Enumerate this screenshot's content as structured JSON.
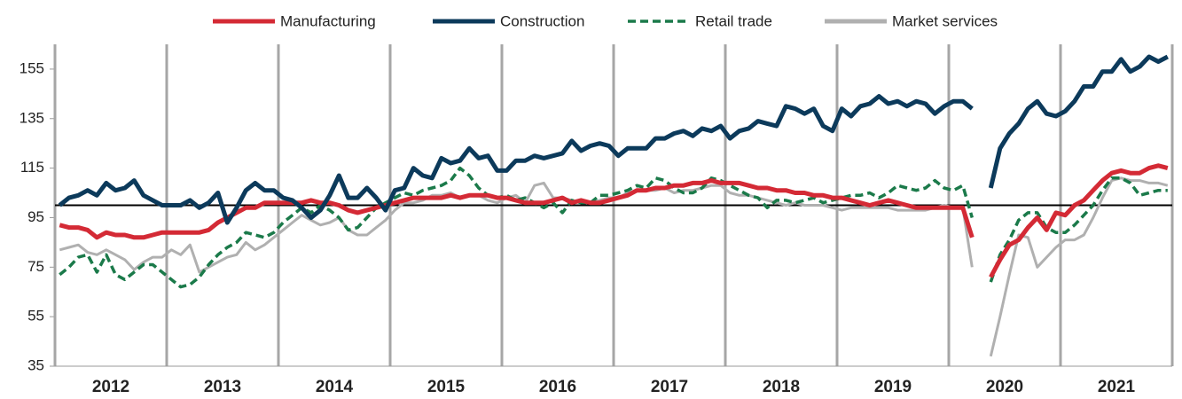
{
  "chart_data": {
    "type": "line",
    "categories": [
      null,
      null,
      null,
      null,
      null,
      null,
      "2012",
      null,
      null,
      null,
      null,
      null,
      null,
      null,
      null,
      null,
      null,
      null,
      "2013",
      null,
      null,
      null,
      null,
      null,
      null,
      null,
      null,
      null,
      null,
      null,
      "2014",
      null,
      null,
      null,
      null,
      null,
      null,
      null,
      null,
      null,
      null,
      null,
      "2015",
      null,
      null,
      null,
      null,
      null,
      null,
      null,
      null,
      null,
      null,
      null,
      "2016",
      null,
      null,
      null,
      null,
      null,
      null,
      null,
      null,
      null,
      null,
      null,
      "2017",
      null,
      null,
      null,
      null,
      null,
      null,
      null,
      null,
      null,
      null,
      null,
      "2018",
      null,
      null,
      null,
      null,
      null,
      null,
      null,
      null,
      null,
      null,
      null,
      "2019",
      null,
      null,
      null,
      null,
      null,
      null,
      null,
      null,
      null,
      null,
      null,
      "2020",
      null,
      null,
      null,
      null,
      null,
      null,
      null,
      null,
      null,
      null,
      null,
      "2021",
      null,
      null,
      null,
      null,
      null
    ],
    "series": [
      {
        "name": "Manufacturing",
        "color": "#d42a35",
        "dash": false,
        "values": [
          92,
          91,
          91,
          90,
          87,
          89,
          88,
          88,
          87,
          87,
          88,
          89,
          89,
          89,
          89,
          89,
          90,
          93,
          95,
          97,
          99,
          99,
          101,
          101,
          101,
          101,
          101,
          102,
          101,
          101,
          100,
          98,
          97,
          98,
          99,
          100,
          101,
          102,
          103,
          103,
          103,
          103,
          104,
          103,
          104,
          104,
          104,
          103,
          103,
          102,
          101,
          101,
          101,
          102,
          103,
          101,
          102,
          101,
          101,
          102,
          103,
          104,
          106,
          106,
          107,
          107,
          108,
          108,
          109,
          109,
          110,
          109,
          109,
          109,
          108,
          107,
          107,
          106,
          106,
          105,
          105,
          104,
          104,
          103,
          103,
          102,
          101,
          100,
          101,
          102,
          101,
          100,
          99,
          99,
          99,
          99,
          99,
          99,
          87,
          null,
          71,
          78,
          84,
          86,
          91,
          95,
          90,
          97,
          96,
          100,
          102,
          106,
          110,
          113,
          114,
          113,
          113,
          115,
          116,
          115
        ]
      },
      {
        "name": "Construction",
        "color": "#0c3a5b",
        "dash": false,
        "values": [
          100,
          103,
          104,
          106,
          104,
          109,
          106,
          107,
          110,
          104,
          102,
          100,
          100,
          100,
          102,
          99,
          101,
          105,
          93,
          99,
          106,
          109,
          106,
          106,
          103,
          102,
          99,
          95,
          98,
          104,
          112,
          103,
          103,
          107,
          103,
          98,
          106,
          107,
          115,
          112,
          111,
          119,
          117,
          118,
          123,
          119,
          120,
          114,
          114,
          118,
          118,
          120,
          119,
          120,
          121,
          126,
          122,
          124,
          125,
          124,
          120,
          123,
          123,
          123,
          127,
          127,
          129,
          130,
          128,
          131,
          130,
          132,
          127,
          130,
          131,
          134,
          133,
          132,
          140,
          139,
          137,
          139,
          132,
          130,
          139,
          136,
          140,
          141,
          144,
          141,
          142,
          140,
          142,
          141,
          137,
          140,
          142,
          142,
          139,
          null,
          107,
          123,
          129,
          133,
          139,
          142,
          137,
          136,
          138,
          142,
          148,
          148,
          154,
          154,
          159,
          154,
          156,
          160,
          158,
          160
        ]
      },
      {
        "name": "Retail trade",
        "color": "#1b7a4a",
        "dash": true,
        "values": [
          72,
          75,
          79,
          80,
          73,
          80,
          72,
          70,
          73,
          76,
          76,
          73,
          70,
          67,
          68,
          71,
          76,
          80,
          83,
          85,
          89,
          88,
          87,
          89,
          93,
          96,
          99,
          97,
          100,
          98,
          95,
          90,
          91,
          95,
          99,
          101,
          103,
          105,
          104,
          106,
          107,
          108,
          110,
          115,
          112,
          107,
          104,
          103,
          104,
          102,
          103,
          101,
          99,
          101,
          97,
          102,
          101,
          101,
          104,
          104,
          105,
          106,
          108,
          107,
          111,
          110,
          107,
          105,
          105,
          107,
          111,
          110,
          108,
          106,
          104,
          103,
          99,
          102,
          102,
          101,
          102,
          103,
          101,
          102,
          103,
          104,
          104,
          105,
          103,
          105,
          108,
          107,
          106,
          107,
          110,
          107,
          106,
          108,
          95,
          null,
          69,
          80,
          86,
          94,
          97,
          97,
          91,
          89,
          89,
          92,
          96,
          100,
          106,
          111,
          111,
          109,
          104,
          105,
          106,
          106
        ]
      },
      {
        "name": "Market services",
        "color": "#b0b0b0",
        "dash": false,
        "values": [
          82,
          83,
          84,
          81,
          80,
          82,
          80,
          78,
          74,
          77,
          79,
          79,
          82,
          80,
          84,
          73,
          75,
          77,
          79,
          80,
          85,
          82,
          84,
          87,
          90,
          93,
          96,
          94,
          92,
          93,
          95,
          90,
          88,
          88,
          91,
          94,
          98,
          101,
          101,
          102,
          104,
          104,
          105,
          103,
          104,
          104,
          102,
          101,
          103,
          104,
          101,
          108,
          109,
          103,
          103,
          102,
          101,
          101,
          102,
          103,
          103,
          105,
          106,
          106,
          106,
          107,
          105,
          106,
          106,
          107,
          108,
          108,
          105,
          104,
          104,
          103,
          102,
          101,
          100,
          101,
          100,
          100,
          100,
          99,
          98,
          99,
          99,
          99,
          99,
          99,
          98,
          98,
          98,
          98,
          99,
          100,
          99,
          99,
          75,
          null,
          39,
          55,
          72,
          88,
          87,
          75,
          79,
          83,
          86,
          86,
          88,
          95,
          103,
          110,
          111,
          110,
          110,
          109,
          109,
          108
        ]
      }
    ],
    "ylim": [
      35,
      165
    ],
    "yticks": [
      35,
      55,
      75,
      95,
      115,
      135,
      155
    ],
    "baseline": 100,
    "legend": "top"
  }
}
